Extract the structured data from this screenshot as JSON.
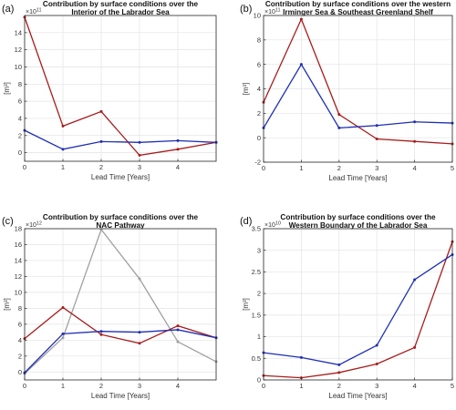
{
  "chart_data": [
    {
      "type": "line",
      "panel_label": "(a)",
      "title_lines": [
        "Contribution by surface conditions over the",
        "Interior of the Labrador Sea"
      ],
      "xlabel": "Lead Time [Years]",
      "ylabel": "[m³]",
      "multiplier": "×10",
      "multiplier_exp": "11",
      "xlim": [
        0,
        5
      ],
      "ylim": [
        -1,
        16
      ],
      "xticks": [
        0,
        1,
        2,
        3,
        4
      ],
      "yticks": [
        0,
        2,
        4,
        6,
        8,
        10,
        12,
        14
      ],
      "grid": true,
      "x": [
        0,
        1,
        2,
        3,
        4,
        5
      ],
      "series": [
        {
          "color": "#a81c1c",
          "values": [
            15.8,
            3.1,
            4.8,
            -0.3,
            0.4,
            1.2
          ]
        },
        {
          "color": "#1f2fb4",
          "values": [
            2.6,
            0.4,
            1.3,
            1.2,
            1.4,
            1.2
          ]
        }
      ]
    },
    {
      "type": "line",
      "panel_label": "(b)",
      "title_lines": [
        "Contribution by surface conditions over the western",
        "Irminger Sea & Southeast Greenland Shelf"
      ],
      "xlabel": "Lead Time [Years]",
      "ylabel": "[m³]",
      "multiplier": "×10",
      "multiplier_exp": "11",
      "xlim": [
        0,
        5
      ],
      "ylim": [
        -2,
        10
      ],
      "xticks": [
        0,
        1,
        2,
        3,
        4,
        5
      ],
      "yticks": [
        -2,
        0,
        2,
        4,
        6,
        8,
        10
      ],
      "grid": true,
      "x": [
        0,
        1,
        2,
        3,
        4,
        5
      ],
      "series": [
        {
          "color": "#a81c1c",
          "values": [
            2.9,
            9.7,
            1.9,
            -0.1,
            -0.3,
            -0.5
          ]
        },
        {
          "color": "#1f2fb4",
          "values": [
            0.8,
            6.0,
            0.8,
            1.0,
            1.3,
            1.2
          ]
        }
      ]
    },
    {
      "type": "line",
      "panel_label": "(c)",
      "title_lines": [
        "Contribution by surface conditions over the",
        "NAC Pathway"
      ],
      "xlabel": "Lead Time [Years]",
      "ylabel": "[m³]",
      "multiplier": "×10",
      "multiplier_exp": "12",
      "xlim": [
        0,
        5
      ],
      "ylim": [
        -1,
        18
      ],
      "xticks": [
        0,
        1,
        2,
        3,
        4
      ],
      "yticks": [
        0,
        2,
        4,
        6,
        8,
        10,
        12,
        14,
        16,
        18
      ],
      "grid": true,
      "x": [
        0,
        1,
        2,
        3,
        4,
        5
      ],
      "series": [
        {
          "color": "#a0a0a0",
          "values": [
            -0.2,
            4.3,
            17.9,
            11.7,
            3.8,
            1.3
          ]
        },
        {
          "color": "#a81c1c",
          "values": [
            4.2,
            8.1,
            4.7,
            3.6,
            5.8,
            4.3
          ]
        },
        {
          "color": "#1f2fb4",
          "values": [
            -0.1,
            4.8,
            5.1,
            5.0,
            5.3,
            4.3
          ]
        }
      ]
    },
    {
      "type": "line",
      "panel_label": "(d)",
      "title_lines": [
        "Contribution by surface conditions over the",
        "Western Boundary of the Labrador Sea"
      ],
      "xlabel": "Lead Time [Years]",
      "ylabel": "[m³]",
      "multiplier": "×10",
      "multiplier_exp": "10",
      "xlim": [
        0,
        5
      ],
      "ylim": [
        0,
        3.5
      ],
      "xticks": [
        0,
        1,
        2,
        3,
        4,
        5
      ],
      "yticks": [
        0,
        0.5,
        1,
        1.5,
        2,
        2.5,
        3,
        3.5
      ],
      "grid": true,
      "x": [
        0,
        1,
        2,
        3,
        4,
        5
      ],
      "series": [
        {
          "color": "#a81c1c",
          "values": [
            0.1,
            0.05,
            0.17,
            0.37,
            0.75,
            3.2
          ]
        },
        {
          "color": "#1f2fb4",
          "values": [
            0.63,
            0.52,
            0.35,
            0.8,
            2.32,
            2.9
          ]
        }
      ]
    }
  ]
}
